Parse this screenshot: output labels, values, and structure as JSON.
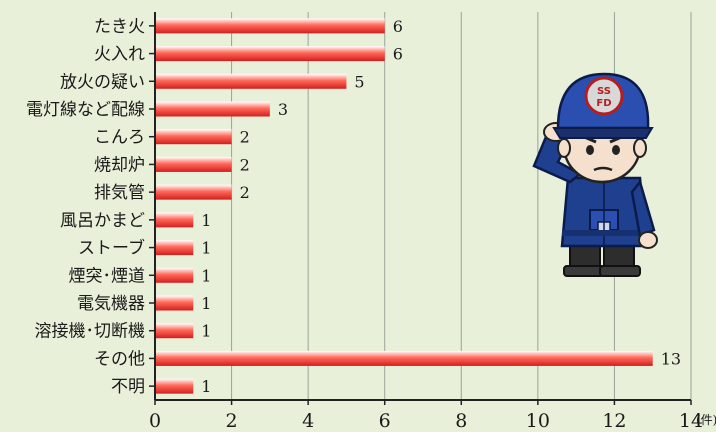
{
  "chart_data": {
    "type": "bar",
    "orientation": "horizontal",
    "categories": [
      "たき火",
      "火入れ",
      "放火の疑い",
      "電灯線など配線",
      "こんろ",
      "焼却炉",
      "排気管",
      "風呂かまど",
      "ストーブ",
      "煙突･煙道",
      "電気機器",
      "溶接機･切断機",
      "その他",
      "不明"
    ],
    "values": [
      6,
      6,
      5,
      3,
      2,
      2,
      2,
      1,
      1,
      1,
      1,
      1,
      13,
      1
    ],
    "xlim": [
      0,
      14
    ],
    "xticks": [
      0,
      2,
      4,
      6,
      8,
      10,
      12,
      14
    ],
    "x_unit": "(件)",
    "grid": "vertical",
    "bar_color_top": "#ffffff",
    "bar_color_mid": "#ff6a5a",
    "bar_color_bottom": "#d31e1e"
  },
  "colors": {
    "background": "#e8f0d9",
    "axis": "#222222",
    "grid": "#9aa39a"
  },
  "illustration": {
    "icon": "firefighter-saluting-icon",
    "cap_text": "SSFD"
  }
}
